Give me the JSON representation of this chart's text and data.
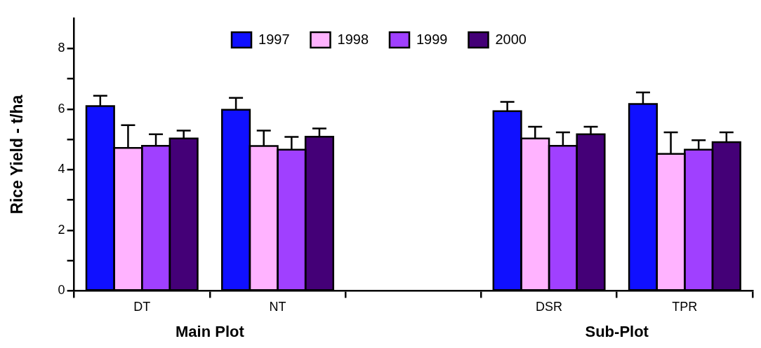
{
  "chart_data": {
    "type": "bar",
    "ylabel": "Rice Yield - t/ha",
    "categories": [
      "DT",
      "NT",
      null,
      "DSR",
      "TPR"
    ],
    "series": [
      {
        "name": "1997",
        "color": "#1010ff",
        "values": [
          6.1,
          5.98,
          null,
          5.93,
          6.17
        ],
        "errors": [
          0.34,
          0.39,
          null,
          0.31,
          0.38
        ]
      },
      {
        "name": "1998",
        "color": "#ffb3ff",
        "values": [
          4.72,
          4.78,
          null,
          5.03,
          4.52
        ],
        "errors": [
          0.75,
          0.51,
          null,
          0.39,
          0.71
        ]
      },
      {
        "name": "1999",
        "color": "#a040ff",
        "values": [
          4.79,
          4.66,
          null,
          4.79,
          4.66
        ],
        "errors": [
          0.38,
          0.42,
          null,
          0.44,
          0.31
        ]
      },
      {
        "name": "2000",
        "color": "#440077",
        "values": [
          5.03,
          5.09,
          null,
          5.17,
          4.91
        ],
        "errors": [
          0.26,
          0.27,
          null,
          0.25,
          0.32
        ]
      }
    ],
    "ylim": [
      0,
      9
    ],
    "yticks": [
      0,
      {
        "value": 1,
        "label": null
      },
      2,
      {
        "value": 3,
        "label": null
      },
      4,
      {
        "value": 5,
        "label": null
      },
      6,
      {
        "value": 7,
        "label": null
      },
      8
    ],
    "legend": "top",
    "annotations": [
      "Main Plot",
      "Sub-Plot"
    ]
  }
}
